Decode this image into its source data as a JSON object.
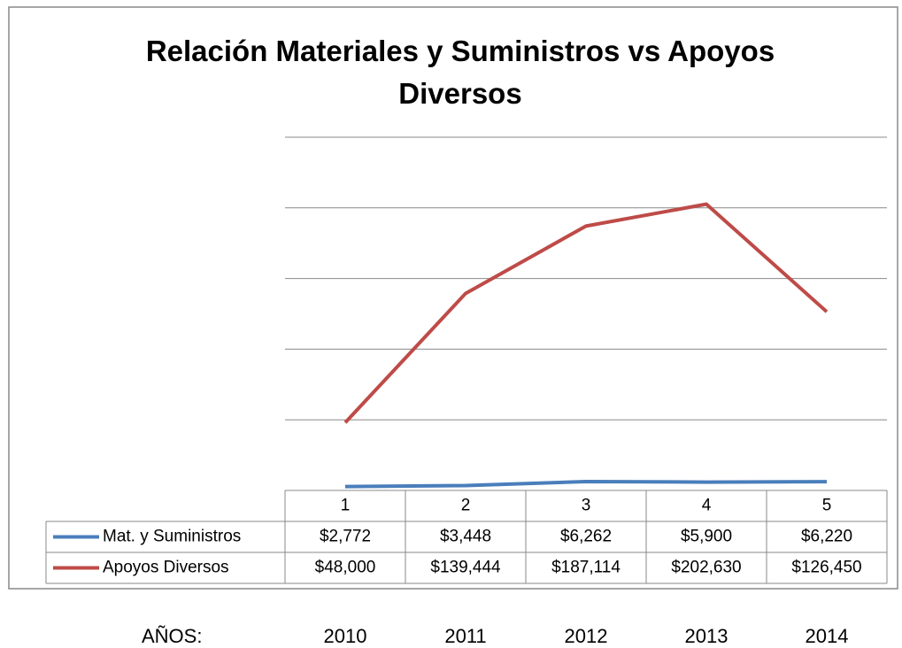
{
  "chart_data": {
    "type": "line",
    "title": "Relación Materiales y Suministros vs Apoyos Diversos",
    "categories": [
      "1",
      "2",
      "3",
      "4",
      "5"
    ],
    "series": [
      {
        "name": "Mat. y Suministros",
        "color": "#4a7ebb",
        "values": [
          2772,
          3448,
          6262,
          5900,
          6220
        ],
        "value_labels": [
          "$2,772",
          "$3,448",
          "$6,262",
          "$5,900",
          "$6,220"
        ]
      },
      {
        "name": "Apoyos Diversos",
        "color": "#be4b48",
        "values": [
          48000,
          139444,
          187114,
          202630,
          126450
        ],
        "value_labels": [
          "$48,000",
          "$139,444",
          "$187,114",
          "$202,630",
          "$126,450"
        ]
      }
    ],
    "ylim": [
      0,
      250000
    ],
    "yticks": [
      0,
      50000,
      100000,
      150000,
      200000,
      250000
    ],
    "grid": true
  },
  "footer": {
    "label": "AÑOS:",
    "years": [
      "2010",
      "2011",
      "2012",
      "2013",
      "2014"
    ]
  }
}
